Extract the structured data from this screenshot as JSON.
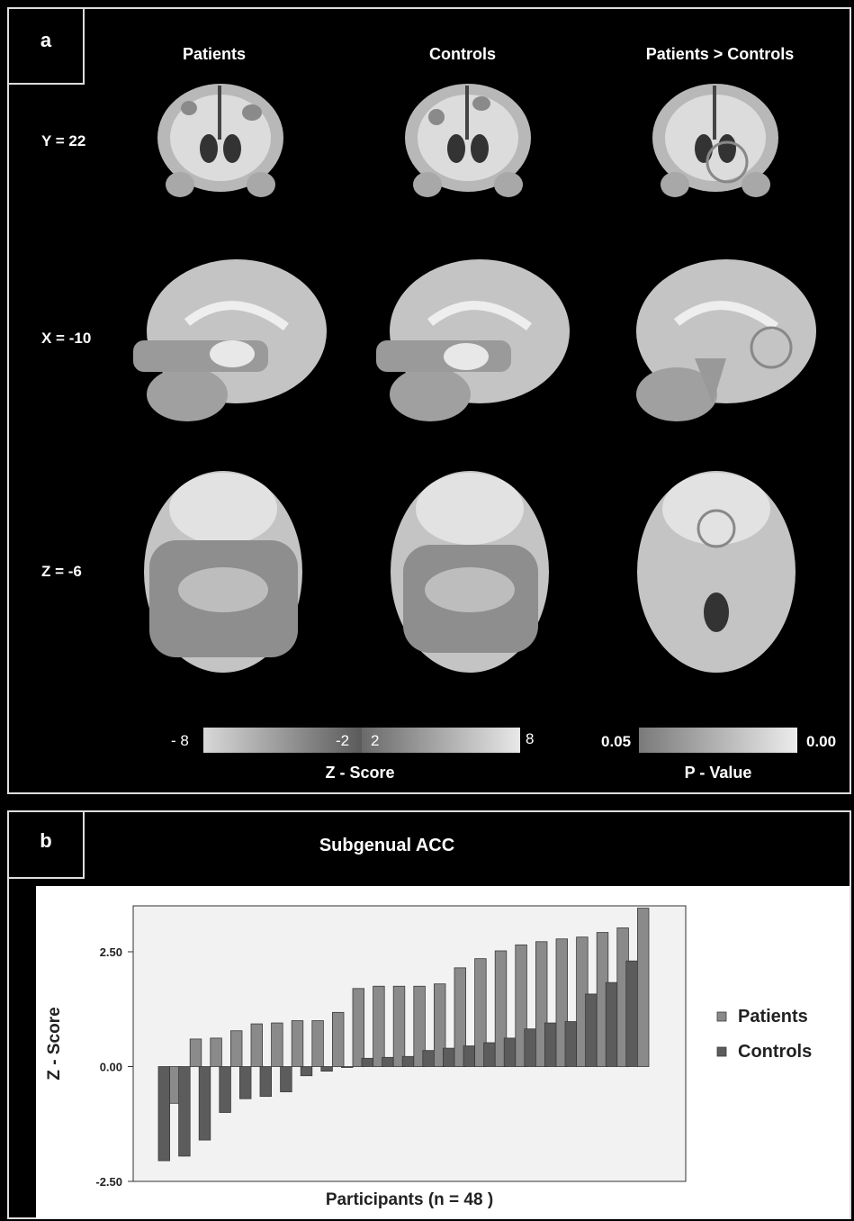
{
  "panel_a": {
    "letter": "a",
    "columns": [
      "Patients",
      "Controls",
      "Patients > Controls"
    ],
    "rows": [
      "Y = 22",
      "X = -10",
      "Z = -6"
    ],
    "zscore_scale": {
      "min_label": "- 8",
      "neg_label": "-2",
      "pos_label": "2",
      "max_label": "8",
      "title": "Z - Score"
    },
    "pvalue_scale": {
      "left_label": "0.05",
      "right_label": "0.00",
      "title": "P - Value"
    }
  },
  "panel_b": {
    "letter": "b",
    "title": "Subgenual ACC"
  },
  "chart_data": {
    "type": "bar",
    "title": "Subgenual ACC",
    "xlabel": "Participants (n = 48 )",
    "ylabel": "Z - Score",
    "ylim": [
      -2.5,
      3.5
    ],
    "yticks": [
      2.5,
      0.0,
      -2.5
    ],
    "ytick_labels": [
      "2.50",
      "0.00",
      "-2.50"
    ],
    "grid": false,
    "legend_position": "right",
    "series": [
      {
        "name": "Patients",
        "color": "#8a8a8a",
        "values": [
          -0.8,
          0.6,
          0.62,
          0.78,
          0.93,
          0.95,
          1.0,
          1.0,
          1.18,
          1.7,
          1.75,
          1.75,
          1.75,
          1.8,
          2.15,
          2.35,
          2.52,
          2.65,
          2.72,
          2.78,
          2.82,
          2.92,
          3.02,
          3.45
        ]
      },
      {
        "name": "Controls",
        "color": "#5c5c5c",
        "values": [
          -2.05,
          -1.95,
          -1.6,
          -1.0,
          -0.7,
          -0.65,
          -0.55,
          -0.2,
          -0.1,
          -0.02,
          0.18,
          0.2,
          0.22,
          0.35,
          0.4,
          0.45,
          0.52,
          0.62,
          0.82,
          0.95,
          0.98,
          1.58,
          1.83,
          2.3
        ]
      }
    ]
  }
}
